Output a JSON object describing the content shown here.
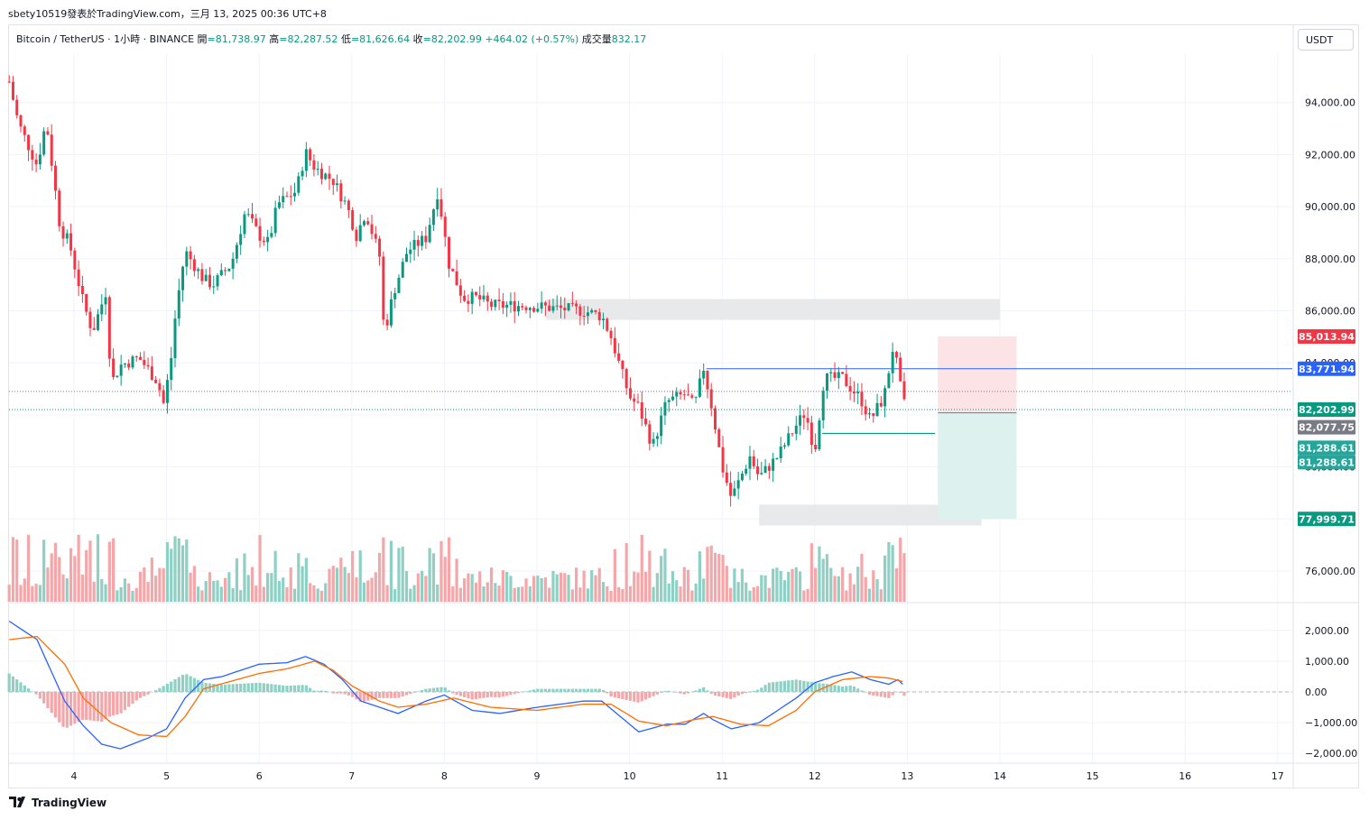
{
  "header": {
    "published_by": "sbety10519發表於TradingView.com，三月 13, 2025 00:36 UTC+8"
  },
  "legend": {
    "symbol": "Bitcoin / TetherUS · 1小時 · BINANCE",
    "open_label": "開",
    "open": "=81,738.97",
    "high_label": "高",
    "high": "=82,287.52",
    "low_label": "低",
    "low": "=81,626.64",
    "close_label": "收",
    "close": "=82,202.99",
    "change": "+464.02 (+0.57%)",
    "volume_label": "成交量",
    "volume": "832.17"
  },
  "currency_button": "USDT",
  "footer": {
    "brand": "TradingView",
    "logo_icon": "tradingview-logo-icon"
  },
  "colors": {
    "up": "#089981",
    "down": "#f23645",
    "up_vol": "#8fd0c5",
    "down_vol": "#f4a6a9",
    "macd": "#2962ff",
    "signal": "#ff6d00",
    "zone": "#e8e9eb",
    "target_zone": "#ddf1ef",
    "stop_zone": "#fce4e6"
  },
  "chart_data": [
    {
      "type": "candlestick",
      "title": "Bitcoin / TetherUS",
      "interval": "1h",
      "x_axis": {
        "labels": [
          "4",
          "5",
          "6",
          "7",
          "8",
          "9",
          "10",
          "11",
          "12",
          "13",
          "14",
          "15",
          "16",
          "17"
        ]
      },
      "y_axis": {
        "ticks": [
          "94,000.00",
          "92,000.00",
          "90,000.00",
          "88,000.00",
          "86,000.00",
          "84,000.00",
          "80,000.00",
          "76,000.00"
        ],
        "tick_values": [
          94000,
          92000,
          90000,
          88000,
          86000,
          84000,
          80000,
          76000
        ],
        "range": [
          74800,
          96000
        ]
      },
      "price_labels": [
        {
          "text": "85,013.94",
          "value": 85013.94,
          "color": "#f23645"
        },
        {
          "text": "83,771.94",
          "value": 83771.94,
          "color": "#2962ff"
        },
        {
          "text": "82,202.99",
          "value": 82202.99,
          "color": "#089981"
        },
        {
          "text": "82,077.75",
          "value": 82077.75,
          "color": "#787b86"
        },
        {
          "text": "81,288.61",
          "value": 81288.61,
          "color": "#26a69a"
        },
        {
          "text": "81,288.61",
          "value": 81288.61,
          "color": "#26a69a"
        },
        {
          "text": "77,999.71",
          "value": 77999.71,
          "color": "#089981"
        }
      ],
      "price_path": [
        [
          3.3,
          94800
        ],
        [
          3.4,
          93200
        ],
        [
          3.6,
          91600
        ],
        [
          3.7,
          93300
        ],
        [
          3.85,
          89200
        ],
        [
          3.95,
          88600
        ],
        [
          4.1,
          86300
        ],
        [
          4.2,
          85200
        ],
        [
          4.35,
          86800
        ],
        [
          4.4,
          83200
        ],
        [
          4.5,
          83900
        ],
        [
          4.7,
          84200
        ],
        [
          4.9,
          83300
        ],
        [
          4.97,
          82400
        ],
        [
          5.05,
          84200
        ],
        [
          5.1,
          86000
        ],
        [
          5.2,
          88300
        ],
        [
          5.4,
          87200
        ],
        [
          5.5,
          87000
        ],
        [
          5.7,
          87800
        ],
        [
          5.85,
          89800
        ],
        [
          6.0,
          88900
        ],
        [
          6.1,
          88600
        ],
        [
          6.2,
          90100
        ],
        [
          6.4,
          90600
        ],
        [
          6.5,
          92100
        ],
        [
          6.6,
          91500
        ],
        [
          6.8,
          91000
        ],
        [
          6.95,
          90000
        ],
        [
          7.05,
          88900
        ],
        [
          7.15,
          89800
        ],
        [
          7.3,
          88100
        ],
        [
          7.35,
          85100
        ],
        [
          7.45,
          86700
        ],
        [
          7.6,
          88300
        ],
        [
          7.8,
          88800
        ],
        [
          7.93,
          90600
        ],
        [
          8.05,
          87800
        ],
        [
          8.2,
          86500
        ],
        [
          8.35,
          86500
        ],
        [
          8.5,
          86200
        ],
        [
          8.7,
          86200
        ],
        [
          8.9,
          86200
        ],
        [
          9.2,
          86100
        ],
        [
          9.5,
          86000
        ],
        [
          9.7,
          85800
        ],
        [
          9.8,
          85000
        ],
        [
          9.9,
          83800
        ],
        [
          10.0,
          82700
        ],
        [
          10.1,
          82300
        ],
        [
          10.25,
          80800
        ],
        [
          10.4,
          82500
        ],
        [
          10.6,
          82800
        ],
        [
          10.7,
          82300
        ],
        [
          10.8,
          83800
        ],
        [
          10.9,
          82100
        ],
        [
          11.0,
          80000
        ],
        [
          11.1,
          78800
        ],
        [
          11.3,
          80400
        ],
        [
          11.4,
          79600
        ],
        [
          11.6,
          80400
        ],
        [
          11.8,
          81600
        ],
        [
          11.9,
          82100
        ],
        [
          12.0,
          80600
        ],
        [
          12.1,
          83400
        ],
        [
          12.3,
          83400
        ],
        [
          12.5,
          82600
        ],
        [
          12.6,
          81800
        ],
        [
          12.75,
          82700
        ],
        [
          12.85,
          84700
        ],
        [
          12.95,
          82500
        ],
        [
          13.0,
          82203
        ]
      ],
      "candles": "hourly OHLC candles as drawn; bodies green when close > open, red otherwise"
    },
    {
      "type": "bar",
      "title": "Volume",
      "note": "volume histogram under candles, unlabeled"
    },
    {
      "type": "line",
      "title": "MACD",
      "y_axis": {
        "ticks": [
          "2,000.00",
          "1,000.00",
          "0.00",
          "−1,000.00",
          "−2,000.00"
        ],
        "tick_values": [
          2000,
          1000,
          0,
          -1000,
          -2000
        ]
      },
      "macd": [
        [
          3.3,
          2300
        ],
        [
          3.6,
          1700
        ],
        [
          3.9,
          -300
        ],
        [
          4.1,
          -1100
        ],
        [
          4.3,
          -1700
        ],
        [
          4.5,
          -1850
        ],
        [
          4.8,
          -1500
        ],
        [
          5.0,
          -1200
        ],
        [
          5.2,
          -200
        ],
        [
          5.4,
          400
        ],
        [
          5.6,
          500
        ],
        [
          5.8,
          700
        ],
        [
          6.0,
          900
        ],
        [
          6.3,
          950
        ],
        [
          6.5,
          1150
        ],
        [
          6.7,
          900
        ],
        [
          6.9,
          400
        ],
        [
          7.1,
          -300
        ],
        [
          7.3,
          -500
        ],
        [
          7.5,
          -700
        ],
        [
          7.8,
          -300
        ],
        [
          8.0,
          -100
        ],
        [
          8.3,
          -600
        ],
        [
          8.6,
          -700
        ],
        [
          9.0,
          -500
        ],
        [
          9.5,
          -300
        ],
        [
          9.7,
          -300
        ],
        [
          9.9,
          -800
        ],
        [
          10.1,
          -1300
        ],
        [
          10.4,
          -1050
        ],
        [
          10.6,
          -1050
        ],
        [
          10.8,
          -700
        ],
        [
          10.9,
          -900
        ],
        [
          11.1,
          -1200
        ],
        [
          11.4,
          -1000
        ],
        [
          11.6,
          -600
        ],
        [
          11.8,
          -200
        ],
        [
          12.0,
          300
        ],
        [
          12.2,
          500
        ],
        [
          12.4,
          650
        ],
        [
          12.6,
          400
        ],
        [
          12.8,
          250
        ],
        [
          12.9,
          400
        ],
        [
          13.0,
          100
        ]
      ],
      "signal": [
        [
          3.3,
          1700
        ],
        [
          3.6,
          1800
        ],
        [
          3.9,
          900
        ],
        [
          4.1,
          -200
        ],
        [
          4.4,
          -1000
        ],
        [
          4.7,
          -1400
        ],
        [
          5.0,
          -1450
        ],
        [
          5.2,
          -800
        ],
        [
          5.4,
          100
        ],
        [
          5.7,
          350
        ],
        [
          6.0,
          600
        ],
        [
          6.3,
          750
        ],
        [
          6.6,
          1000
        ],
        [
          6.8,
          700
        ],
        [
          7.0,
          200
        ],
        [
          7.3,
          -300
        ],
        [
          7.5,
          -500
        ],
        [
          7.8,
          -400
        ],
        [
          8.1,
          -200
        ],
        [
          8.5,
          -500
        ],
        [
          9.0,
          -600
        ],
        [
          9.5,
          -400
        ],
        [
          9.8,
          -400
        ],
        [
          10.1,
          -950
        ],
        [
          10.4,
          -1100
        ],
        [
          10.7,
          -900
        ],
        [
          10.9,
          -800
        ],
        [
          11.2,
          -1050
        ],
        [
          11.5,
          -1100
        ],
        [
          11.8,
          -600
        ],
        [
          12.0,
          0
        ],
        [
          12.3,
          400
        ],
        [
          12.6,
          500
        ],
        [
          12.8,
          450
        ],
        [
          13.0,
          300
        ]
      ]
    }
  ]
}
